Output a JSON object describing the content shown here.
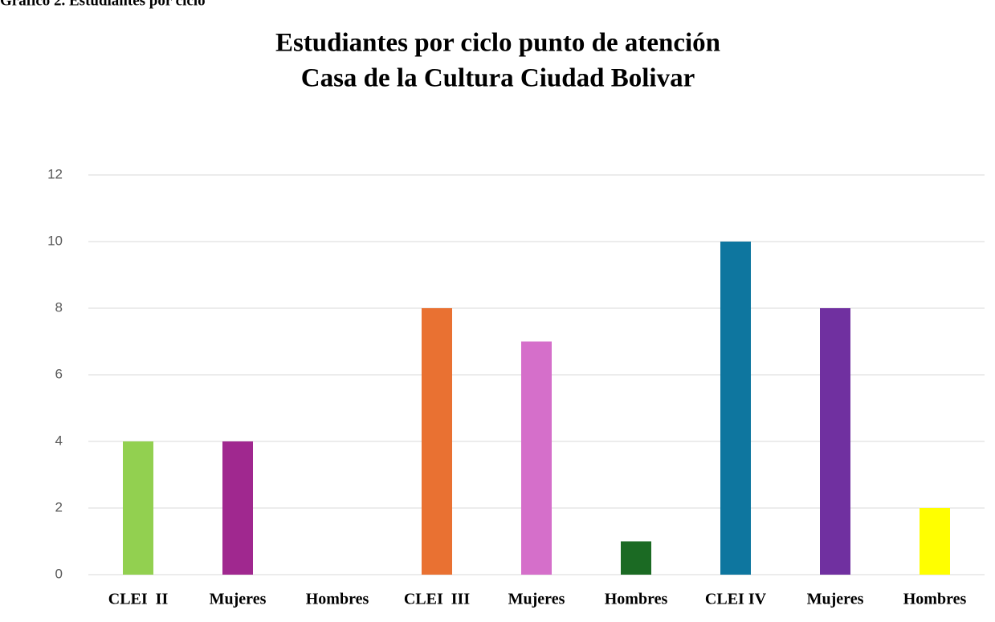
{
  "chart_data": {
    "type": "bar",
    "caption": "Gráfico 2. Estudiantes por ciclo",
    "title": [
      "Estudiantes por ciclo punto de atención",
      "Casa de la Cultura Ciudad Bolivar"
    ],
    "categories": [
      "CLEI  II",
      "Mujeres",
      "Hombres",
      "CLEI  III",
      "Mujeres",
      "Hombres",
      "CLEI IV",
      "Mujeres",
      "Hombres"
    ],
    "values": [
      4,
      4,
      0,
      8,
      7,
      1,
      10,
      8,
      2
    ],
    "colors": [
      "#92d050",
      "#a0288f",
      "#4472c4",
      "#e97132",
      "#d56fca",
      "#1b6a23",
      "#0e769f",
      "#7030a0",
      "#ffff00"
    ],
    "ylim": [
      0,
      12
    ],
    "yticks": [
      0,
      2,
      4,
      6,
      8,
      10,
      12
    ],
    "grid": true
  }
}
